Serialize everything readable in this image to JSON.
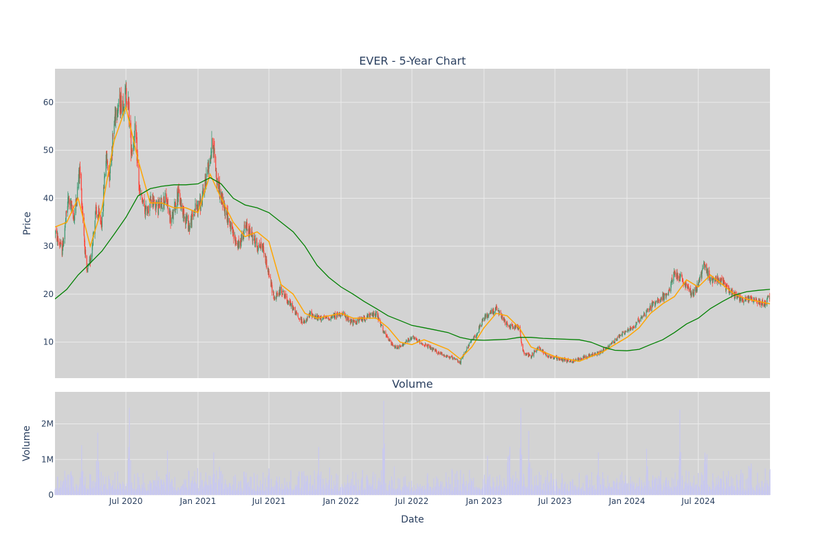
{
  "colors": {
    "plot_bg": "#d3d3d3",
    "grid": "#ebebeb",
    "up": "#3d9970",
    "down": "#ff4136",
    "ma_short": "#ffa500",
    "ma_long": "#008000",
    "volume": "#c8c8f0",
    "text": "#2a3f5f"
  },
  "chart_data": [
    {
      "type": "candlestick",
      "title": "EVER - 5-Year Chart",
      "ylabel": "Price",
      "ylim": [
        2.5,
        67
      ],
      "yticks": [
        10,
        20,
        30,
        40,
        50,
        60
      ],
      "x_range": [
        "2020-01-02",
        "2024-12-31"
      ],
      "grid": true,
      "legend": "none",
      "series": [
        {
          "kind": "ohlc-trend",
          "points": [
            [
              "2020-01-02",
              33
            ],
            [
              "2020-01-20",
              29
            ],
            [
              "2020-02-05",
              40
            ],
            [
              "2020-02-20",
              36
            ],
            [
              "2020-03-05",
              46
            ],
            [
              "2020-03-15",
              34
            ],
            [
              "2020-03-22",
              24
            ],
            [
              "2020-04-01",
              27
            ],
            [
              "2020-04-15",
              37
            ],
            [
              "2020-05-01",
              35
            ],
            [
              "2020-05-10",
              49
            ],
            [
              "2020-05-20",
              45
            ],
            [
              "2020-06-05",
              59
            ],
            [
              "2020-06-20",
              60
            ],
            [
              "2020-07-05",
              62
            ],
            [
              "2020-07-15",
              50
            ],
            [
              "2020-07-25",
              54
            ],
            [
              "2020-08-05",
              41
            ],
            [
              "2020-08-20",
              37
            ],
            [
              "2020-09-05",
              40
            ],
            [
              "2020-09-20",
              38
            ],
            [
              "2020-10-10",
              40
            ],
            [
              "2020-10-25",
              35
            ],
            [
              "2020-11-10",
              41
            ],
            [
              "2020-11-25",
              37
            ],
            [
              "2020-12-10",
              34
            ],
            [
              "2020-12-25",
              38
            ],
            [
              "2021-01-10",
              39
            ],
            [
              "2021-01-25",
              46
            ],
            [
              "2021-02-08",
              52
            ],
            [
              "2021-02-18",
              44
            ],
            [
              "2021-03-01",
              40
            ],
            [
              "2021-03-15",
              37
            ],
            [
              "2021-04-01",
              32
            ],
            [
              "2021-04-15",
              30
            ],
            [
              "2021-05-01",
              34
            ],
            [
              "2021-05-15",
              33
            ],
            [
              "2021-06-01",
              30
            ],
            [
              "2021-06-15",
              30
            ],
            [
              "2021-07-01",
              24
            ],
            [
              "2021-07-15",
              19
            ],
            [
              "2021-08-01",
              21
            ],
            [
              "2021-08-15",
              19
            ],
            [
              "2021-09-01",
              17
            ],
            [
              "2021-09-15",
              15
            ],
            [
              "2021-10-01",
              14
            ],
            [
              "2021-10-15",
              16
            ],
            [
              "2021-11-01",
              15
            ],
            [
              "2021-12-01",
              15
            ],
            [
              "2022-01-01",
              16
            ],
            [
              "2022-02-01",
              14
            ],
            [
              "2022-03-01",
              15
            ],
            [
              "2022-04-01",
              16
            ],
            [
              "2022-04-20",
              12
            ],
            [
              "2022-05-15",
              9
            ],
            [
              "2022-06-01",
              9
            ],
            [
              "2022-07-01",
              11
            ],
            [
              "2022-08-01",
              9.5
            ],
            [
              "2022-09-01",
              8
            ],
            [
              "2022-10-01",
              7
            ],
            [
              "2022-11-01",
              5.8
            ],
            [
              "2022-11-20",
              9
            ],
            [
              "2022-12-15",
              12
            ],
            [
              "2023-01-01",
              15
            ],
            [
              "2023-01-15",
              16
            ],
            [
              "2023-02-01",
              17
            ],
            [
              "2023-03-01",
              13.5
            ],
            [
              "2023-04-01",
              13
            ],
            [
              "2023-04-10",
              8
            ],
            [
              "2023-05-01",
              7
            ],
            [
              "2023-05-20",
              9
            ],
            [
              "2023-06-15",
              7
            ],
            [
              "2023-07-15",
              6.5
            ],
            [
              "2023-08-15",
              6
            ],
            [
              "2023-09-15",
              7
            ],
            [
              "2023-10-15",
              7.5
            ],
            [
              "2023-11-15",
              9
            ],
            [
              "2023-12-15",
              11.5
            ],
            [
              "2024-01-15",
              13
            ],
            [
              "2024-02-15",
              16
            ],
            [
              "2024-03-15",
              18.5
            ],
            [
              "2024-04-15",
              20
            ],
            [
              "2024-05-01",
              24.5
            ],
            [
              "2024-05-20",
              23
            ],
            [
              "2024-06-15",
              20
            ],
            [
              "2024-07-01",
              22
            ],
            [
              "2024-07-15",
              26
            ],
            [
              "2024-08-01",
              23
            ],
            [
              "2024-08-20",
              23.5
            ],
            [
              "2024-09-15",
              21
            ],
            [
              "2024-10-15",
              19
            ],
            [
              "2024-11-15",
              19
            ],
            [
              "2024-12-15",
              18
            ],
            [
              "2024-12-31",
              19.5
            ]
          ]
        },
        {
          "kind": "line",
          "color_key": "ma_short",
          "points": [
            [
              "2020-01-02",
              34
            ],
            [
              "2020-02-01",
              35
            ],
            [
              "2020-03-01",
              40
            ],
            [
              "2020-04-01",
              30
            ],
            [
              "2020-05-01",
              38
            ],
            [
              "2020-06-01",
              52
            ],
            [
              "2020-07-01",
              59
            ],
            [
              "2020-08-01",
              48
            ],
            [
              "2020-09-01",
              39
            ],
            [
              "2020-10-01",
              39
            ],
            [
              "2020-11-01",
              38
            ],
            [
              "2020-12-01",
              38
            ],
            [
              "2021-01-01",
              37
            ],
            [
              "2021-02-01",
              45
            ],
            [
              "2021-03-01",
              40
            ],
            [
              "2021-04-01",
              35
            ],
            [
              "2021-05-01",
              32
            ],
            [
              "2021-06-01",
              33
            ],
            [
              "2021-07-01",
              31
            ],
            [
              "2021-08-01",
              22
            ],
            [
              "2021-09-01",
              20
            ],
            [
              "2021-10-01",
              16
            ],
            [
              "2021-11-01",
              15
            ],
            [
              "2021-12-01",
              15.5
            ],
            [
              "2022-01-01",
              16
            ],
            [
              "2022-02-01",
              15
            ],
            [
              "2022-03-01",
              15
            ],
            [
              "2022-04-01",
              15
            ],
            [
              "2022-05-01",
              13
            ],
            [
              "2022-06-01",
              10
            ],
            [
              "2022-07-01",
              9.5
            ],
            [
              "2022-08-01",
              10.5
            ],
            [
              "2022-09-01",
              9.5
            ],
            [
              "2022-10-01",
              8.5
            ],
            [
              "2022-11-01",
              6.5
            ],
            [
              "2022-12-01",
              9
            ],
            [
              "2023-01-01",
              13
            ],
            [
              "2023-02-01",
              16
            ],
            [
              "2023-03-01",
              15.5
            ],
            [
              "2023-04-01",
              13
            ],
            [
              "2023-05-01",
              9
            ],
            [
              "2023-06-01",
              8
            ],
            [
              "2023-07-01",
              7
            ],
            [
              "2023-08-01",
              6.5
            ],
            [
              "2023-09-01",
              6
            ],
            [
              "2023-10-01",
              7
            ],
            [
              "2023-11-01",
              8
            ],
            [
              "2023-12-01",
              9.5
            ],
            [
              "2024-01-01",
              11
            ],
            [
              "2024-02-01",
              13
            ],
            [
              "2024-03-01",
              16
            ],
            [
              "2024-04-01",
              18
            ],
            [
              "2024-05-01",
              19.5
            ],
            [
              "2024-06-01",
              23
            ],
            [
              "2024-07-01",
              21.5
            ],
            [
              "2024-08-01",
              24
            ],
            [
              "2024-09-01",
              22
            ],
            [
              "2024-10-01",
              20
            ],
            [
              "2024-11-01",
              19
            ],
            [
              "2024-12-01",
              18.5
            ],
            [
              "2024-12-31",
              18
            ]
          ]
        },
        {
          "kind": "line",
          "color_key": "ma_long",
          "points": [
            [
              "2020-01-02",
              19
            ],
            [
              "2020-02-01",
              21
            ],
            [
              "2020-03-01",
              24
            ],
            [
              "2020-04-01",
              26.5
            ],
            [
              "2020-05-01",
              29
            ],
            [
              "2020-06-01",
              32.5
            ],
            [
              "2020-07-01",
              36
            ],
            [
              "2020-08-01",
              40.5
            ],
            [
              "2020-09-01",
              42
            ],
            [
              "2020-10-01",
              42.5
            ],
            [
              "2020-11-01",
              42.8
            ],
            [
              "2020-12-01",
              42.8
            ],
            [
              "2021-01-01",
              43
            ],
            [
              "2021-02-01",
              44.3
            ],
            [
              "2021-03-01",
              43
            ],
            [
              "2021-04-01",
              40
            ],
            [
              "2021-05-01",
              38.6
            ],
            [
              "2021-06-01",
              38
            ],
            [
              "2021-07-01",
              37
            ],
            [
              "2021-08-01",
              35
            ],
            [
              "2021-09-01",
              33
            ],
            [
              "2021-10-01",
              30
            ],
            [
              "2021-11-01",
              26
            ],
            [
              "2021-12-01",
              23.5
            ],
            [
              "2022-01-01",
              21.5
            ],
            [
              "2022-02-01",
              20
            ],
            [
              "2022-03-01",
              18.5
            ],
            [
              "2022-04-01",
              17
            ],
            [
              "2022-05-01",
              15.5
            ],
            [
              "2022-06-01",
              14.5
            ],
            [
              "2022-07-01",
              13.5
            ],
            [
              "2022-08-01",
              13
            ],
            [
              "2022-09-01",
              12.5
            ],
            [
              "2022-10-01",
              12
            ],
            [
              "2022-11-01",
              11
            ],
            [
              "2022-12-01",
              10.5
            ],
            [
              "2023-01-01",
              10.4
            ],
            [
              "2023-02-01",
              10.5
            ],
            [
              "2023-03-01",
              10.6
            ],
            [
              "2023-04-01",
              11
            ],
            [
              "2023-05-01",
              11
            ],
            [
              "2023-06-01",
              10.8
            ],
            [
              "2023-07-01",
              10.7
            ],
            [
              "2023-08-01",
              10.6
            ],
            [
              "2023-09-01",
              10.5
            ],
            [
              "2023-10-01",
              10
            ],
            [
              "2023-11-01",
              9
            ],
            [
              "2023-12-01",
              8.3
            ],
            [
              "2024-01-01",
              8.2
            ],
            [
              "2024-02-01",
              8.5
            ],
            [
              "2024-03-01",
              9.5
            ],
            [
              "2024-04-01",
              10.5
            ],
            [
              "2024-05-01",
              12
            ],
            [
              "2024-06-01",
              13.8
            ],
            [
              "2024-07-01",
              15
            ],
            [
              "2024-08-01",
              17
            ],
            [
              "2024-09-01",
              18.5
            ],
            [
              "2024-10-01",
              19.8
            ],
            [
              "2024-11-01",
              20.5
            ],
            [
              "2024-12-01",
              20.8
            ],
            [
              "2024-12-31",
              21
            ]
          ]
        }
      ]
    },
    {
      "type": "bar",
      "title": "Volume",
      "xlabel": "Date",
      "ylabel": "Volume",
      "ylim": [
        0,
        2900000
      ],
      "yticks": [
        0,
        1000000,
        2000000
      ],
      "ytick_labels": [
        "0",
        "1M",
        "2M"
      ],
      "xticks": [
        "2020-07-01",
        "2021-01-01",
        "2021-07-01",
        "2022-01-01",
        "2022-07-01",
        "2023-01-01",
        "2023-07-01",
        "2024-01-01",
        "2024-07-01"
      ],
      "xtick_labels": [
        "Jul 2020",
        "Jan 2021",
        "Jul 2021",
        "Jan 2022",
        "Jul 2022",
        "Jan 2023",
        "Jul 2023",
        "Jan 2024",
        "Jul 2024"
      ],
      "typical_range": [
        100000,
        700000
      ],
      "spikes": [
        [
          "2020-03-10",
          1400000
        ],
        [
          "2020-04-20",
          1750000
        ],
        [
          "2020-07-10",
          2450000
        ],
        [
          "2020-10-15",
          1250000
        ],
        [
          "2021-02-10",
          1200000
        ],
        [
          "2021-05-01",
          1250000
        ],
        [
          "2021-11-05",
          1350000
        ],
        [
          "2022-04-20",
          2650000
        ],
        [
          "2022-11-25",
          700000
        ],
        [
          "2023-01-10",
          1100000
        ],
        [
          "2023-03-05",
          2500000
        ],
        [
          "2023-04-05",
          2450000
        ],
        [
          "2023-04-25",
          1800000
        ],
        [
          "2023-10-20",
          1200000
        ],
        [
          "2024-02-20",
          1300000
        ],
        [
          "2024-05-15",
          2400000
        ],
        [
          "2024-07-20",
          2200000
        ],
        [
          "2024-11-10",
          1800000
        ]
      ]
    }
  ]
}
